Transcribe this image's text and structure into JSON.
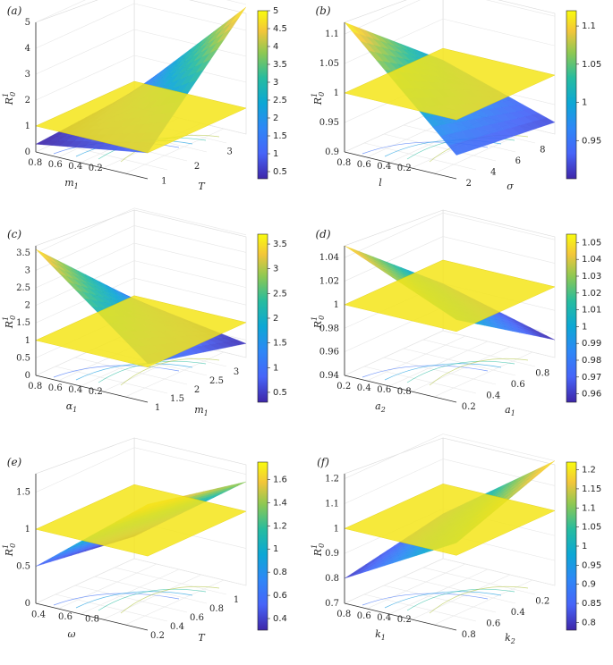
{
  "chart_data": [
    {
      "panel": "(a)",
      "type": "surface3d",
      "title": "",
      "zlabel": "R_0^1",
      "xlabel": "m_1",
      "ylabel": "T",
      "xticks": [
        "0.8",
        "0.6",
        "0.4",
        "0.2"
      ],
      "yticks": [
        "1",
        "2",
        "3"
      ],
      "zticks": [
        "0",
        "1",
        "2",
        "3",
        "4",
        "5"
      ],
      "zlim": [
        0,
        5
      ],
      "reference_plane": 1,
      "surface_corners": {
        "m1_high_T1": 0.3,
        "m1_low_T1": 0.6,
        "m1_high_Tmax": 1.0,
        "m1_low_Tmax": 4.9
      },
      "colorbar": {
        "ticks": [
          "0.5",
          "1",
          "1.5",
          "2",
          "2.5",
          "3",
          "3.5",
          "4",
          "4.5",
          "5"
        ],
        "range": [
          0.3,
          5
        ]
      }
    },
    {
      "panel": "(b)",
      "type": "surface3d",
      "title": "",
      "zlabel": "R_0^1",
      "xlabel": "l",
      "ylabel": "σ",
      "xticks": [
        "0.8",
        "0.6",
        "0.4",
        "0.2"
      ],
      "yticks": [
        "2",
        "4",
        "6",
        "8"
      ],
      "zticks": [
        "0.9",
        "0.95",
        "1",
        "1.05",
        "1.1"
      ],
      "zlim": [
        0.9,
        1.12
      ],
      "reference_plane": 1,
      "surface_corners": {
        "l_high_sigma_min": 1.12,
        "l_low_sigma_min": 0.98,
        "l_high_sigma_max": 0.94,
        "l_low_sigma_max": 0.92
      },
      "colorbar": {
        "ticks": [
          "0.95",
          "1",
          "1.05",
          "1.1"
        ],
        "range": [
          0.9,
          1.12
        ]
      }
    },
    {
      "panel": "(c)",
      "type": "surface3d",
      "title": "",
      "zlabel": "R_0^1",
      "xlabel": "α_1",
      "ylabel": "m_1",
      "xticks": [
        "0.8",
        "0.6",
        "0.4",
        "0.2"
      ],
      "yticks": [
        "1",
        "1.5",
        "2",
        "2.5",
        "3"
      ],
      "zticks": [
        "0",
        "0.5",
        "1",
        "1.5",
        "2",
        "2.5",
        "3",
        "3.5"
      ],
      "zlim": [
        0,
        3.7
      ],
      "reference_plane": 1,
      "surface_corners": {
        "alpha_high_m1_min": 3.6,
        "alpha_low_m1_min": 0.9,
        "alpha_high_m1_max": 1.1,
        "alpha_low_m1_max": 0.4
      },
      "colorbar": {
        "ticks": [
          "0.5",
          "1",
          "1.5",
          "2",
          "2.5",
          "3",
          "3.5"
        ],
        "range": [
          0.3,
          3.7
        ]
      }
    },
    {
      "panel": "(d)",
      "type": "surface3d",
      "title": "",
      "zlabel": "R_0^1",
      "xlabel": "a_2",
      "ylabel": "a_1",
      "xticks": [
        "0.2",
        "0.4",
        "0.6",
        "0.8"
      ],
      "yticks": [
        "0.2",
        "0.4",
        "0.6",
        "0.8"
      ],
      "zticks": [
        "0.94",
        "0.96",
        "0.98",
        "1",
        "1.02",
        "1.04"
      ],
      "zlim": [
        0.94,
        1.05
      ],
      "reference_plane": 1,
      "surface_corners": {
        "a2_low_a1_low": 1.05,
        "a2_high_a1_low": 0.98,
        "a2_low_a1_high": 1.01,
        "a2_high_a1_high": 0.955
      },
      "colorbar": {
        "ticks": [
          "0.96",
          "0.97",
          "0.98",
          "0.99",
          "1",
          "1.01",
          "1.02",
          "1.03",
          "1.04",
          "1.05"
        ],
        "range": [
          0.955,
          1.055
        ]
      }
    },
    {
      "panel": "(e)",
      "type": "surface3d",
      "title": "",
      "zlabel": "R_0^1",
      "xlabel": "ω",
      "ylabel": "T",
      "xticks": [
        "0.4",
        "0.6",
        "0.8"
      ],
      "yticks": [
        "0.2",
        "0.4",
        "0.6",
        "0.8",
        "1"
      ],
      "zticks": [
        "0",
        "0.5",
        "1",
        "1.5"
      ],
      "zlim": [
        0,
        1.75
      ],
      "reference_plane": 1,
      "surface_corners": {
        "omega_low_T_low": 0.5,
        "omega_high_T_low": 0.3,
        "omega_low_T_high": 1.7,
        "omega_high_T_high": 1.4
      },
      "colorbar": {
        "ticks": [
          "0.4",
          "0.6",
          "0.8",
          "1",
          "1.2",
          "1.4",
          "1.6"
        ],
        "range": [
          0.3,
          1.75
        ]
      }
    },
    {
      "panel": "(f)",
      "type": "surface3d",
      "title": "",
      "zlabel": "R_0^1",
      "xlabel": "k_1",
      "ylabel": "k_2",
      "xticks": [
        "0.8",
        "0.6",
        "0.4",
        "0.2"
      ],
      "yticks": [
        "0.8",
        "0.6",
        "0.4",
        "0.2"
      ],
      "zticks": [
        "0.7",
        "0.8",
        "0.9",
        "1",
        "1.1",
        "1.2"
      ],
      "zlim": [
        0.7,
        1.22
      ],
      "reference_plane": 1,
      "surface_corners": {
        "k1_high_k2_high": 0.8,
        "k1_low_k2_high": 0.88,
        "k1_high_k2_low": 1.05,
        "k1_low_k2_low": 1.2
      },
      "colorbar": {
        "ticks": [
          "0.8",
          "0.85",
          "0.9",
          "0.95",
          "1",
          "1.05",
          "1.1",
          "1.15",
          "1.2"
        ],
        "range": [
          0.78,
          1.22
        ]
      }
    }
  ]
}
